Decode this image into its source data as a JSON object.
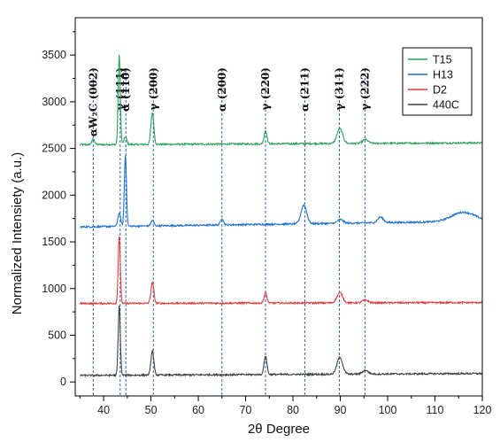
{
  "chart_data": {
    "type": "line",
    "xlabel": "2θ Degree",
    "ylabel": "Normalized Intensiety (a.u.)",
    "xlim": [
      34,
      120
    ],
    "ylim": [
      -150,
      3900
    ],
    "xticks": [
      35,
      40,
      45,
      50,
      55,
      60,
      65,
      70,
      75,
      80,
      85,
      90,
      95,
      100,
      105,
      110,
      115,
      120
    ],
    "xtick_labels": [
      "",
      "40",
      "",
      "50",
      "",
      "60",
      "",
      "70",
      "",
      "80",
      "",
      "90",
      "",
      "100",
      "",
      "110",
      "",
      "120"
    ],
    "yticks": [
      0,
      500,
      1000,
      1500,
      2000,
      2500,
      3000,
      3500
    ],
    "ytick_labels": [
      "0",
      "500",
      "1000",
      "1500",
      "2000",
      "2500",
      "3000",
      "3500"
    ],
    "grid": false,
    "legend_position": "top-right",
    "reference_lines": [
      {
        "x": 37.8,
        "label": "αW₂C (002)"
      },
      {
        "x": 43.5,
        "label": "γ (111)"
      },
      {
        "x": 44.7,
        "label": "α (110)"
      },
      {
        "x": 50.5,
        "label": "γ (200)"
      },
      {
        "x": 65.0,
        "label": "α (200)"
      },
      {
        "x": 74.2,
        "label": "γ (220)"
      },
      {
        "x": 82.5,
        "label": "α (211)"
      },
      {
        "x": 89.8,
        "label": "γ (311)"
      },
      {
        "x": 95.2,
        "label": "γ (222)"
      }
    ],
    "series": [
      {
        "name": "T15",
        "color": "#2ca05a",
        "baseline": 2540,
        "end_baseline": 2560,
        "peaks": [
          [
            37.8,
            60
          ],
          [
            43.3,
            960
          ],
          [
            44.6,
            80
          ],
          [
            50.3,
            340
          ],
          [
            74.2,
            140
          ],
          [
            89.9,
            160
          ],
          [
            95.3,
            40
          ]
        ]
      },
      {
        "name": "H13",
        "color": "#1f6fd1",
        "baseline": 1660,
        "end_baseline": 1720,
        "peaks": [
          [
            43.3,
            140
          ],
          [
            44.6,
            760
          ],
          [
            50.3,
            60
          ],
          [
            65.0,
            70
          ],
          [
            82.3,
            200
          ],
          [
            90.0,
            40
          ],
          [
            98.5,
            60
          ],
          [
            116.0,
            100
          ]
        ]
      },
      {
        "name": "D2",
        "color": "#e03c3c",
        "baseline": 840,
        "end_baseline": 850,
        "peaks": [
          [
            43.3,
            720
          ],
          [
            50.3,
            220
          ],
          [
            74.2,
            110
          ],
          [
            89.9,
            110
          ],
          [
            95.3,
            30
          ]
        ]
      },
      {
        "name": "440C",
        "color": "#404040",
        "baseline": 70,
        "end_baseline": 90,
        "peaks": [
          [
            43.3,
            740
          ],
          [
            50.3,
            260
          ],
          [
            74.2,
            200
          ],
          [
            89.9,
            180
          ],
          [
            95.3,
            40
          ]
        ]
      }
    ]
  }
}
